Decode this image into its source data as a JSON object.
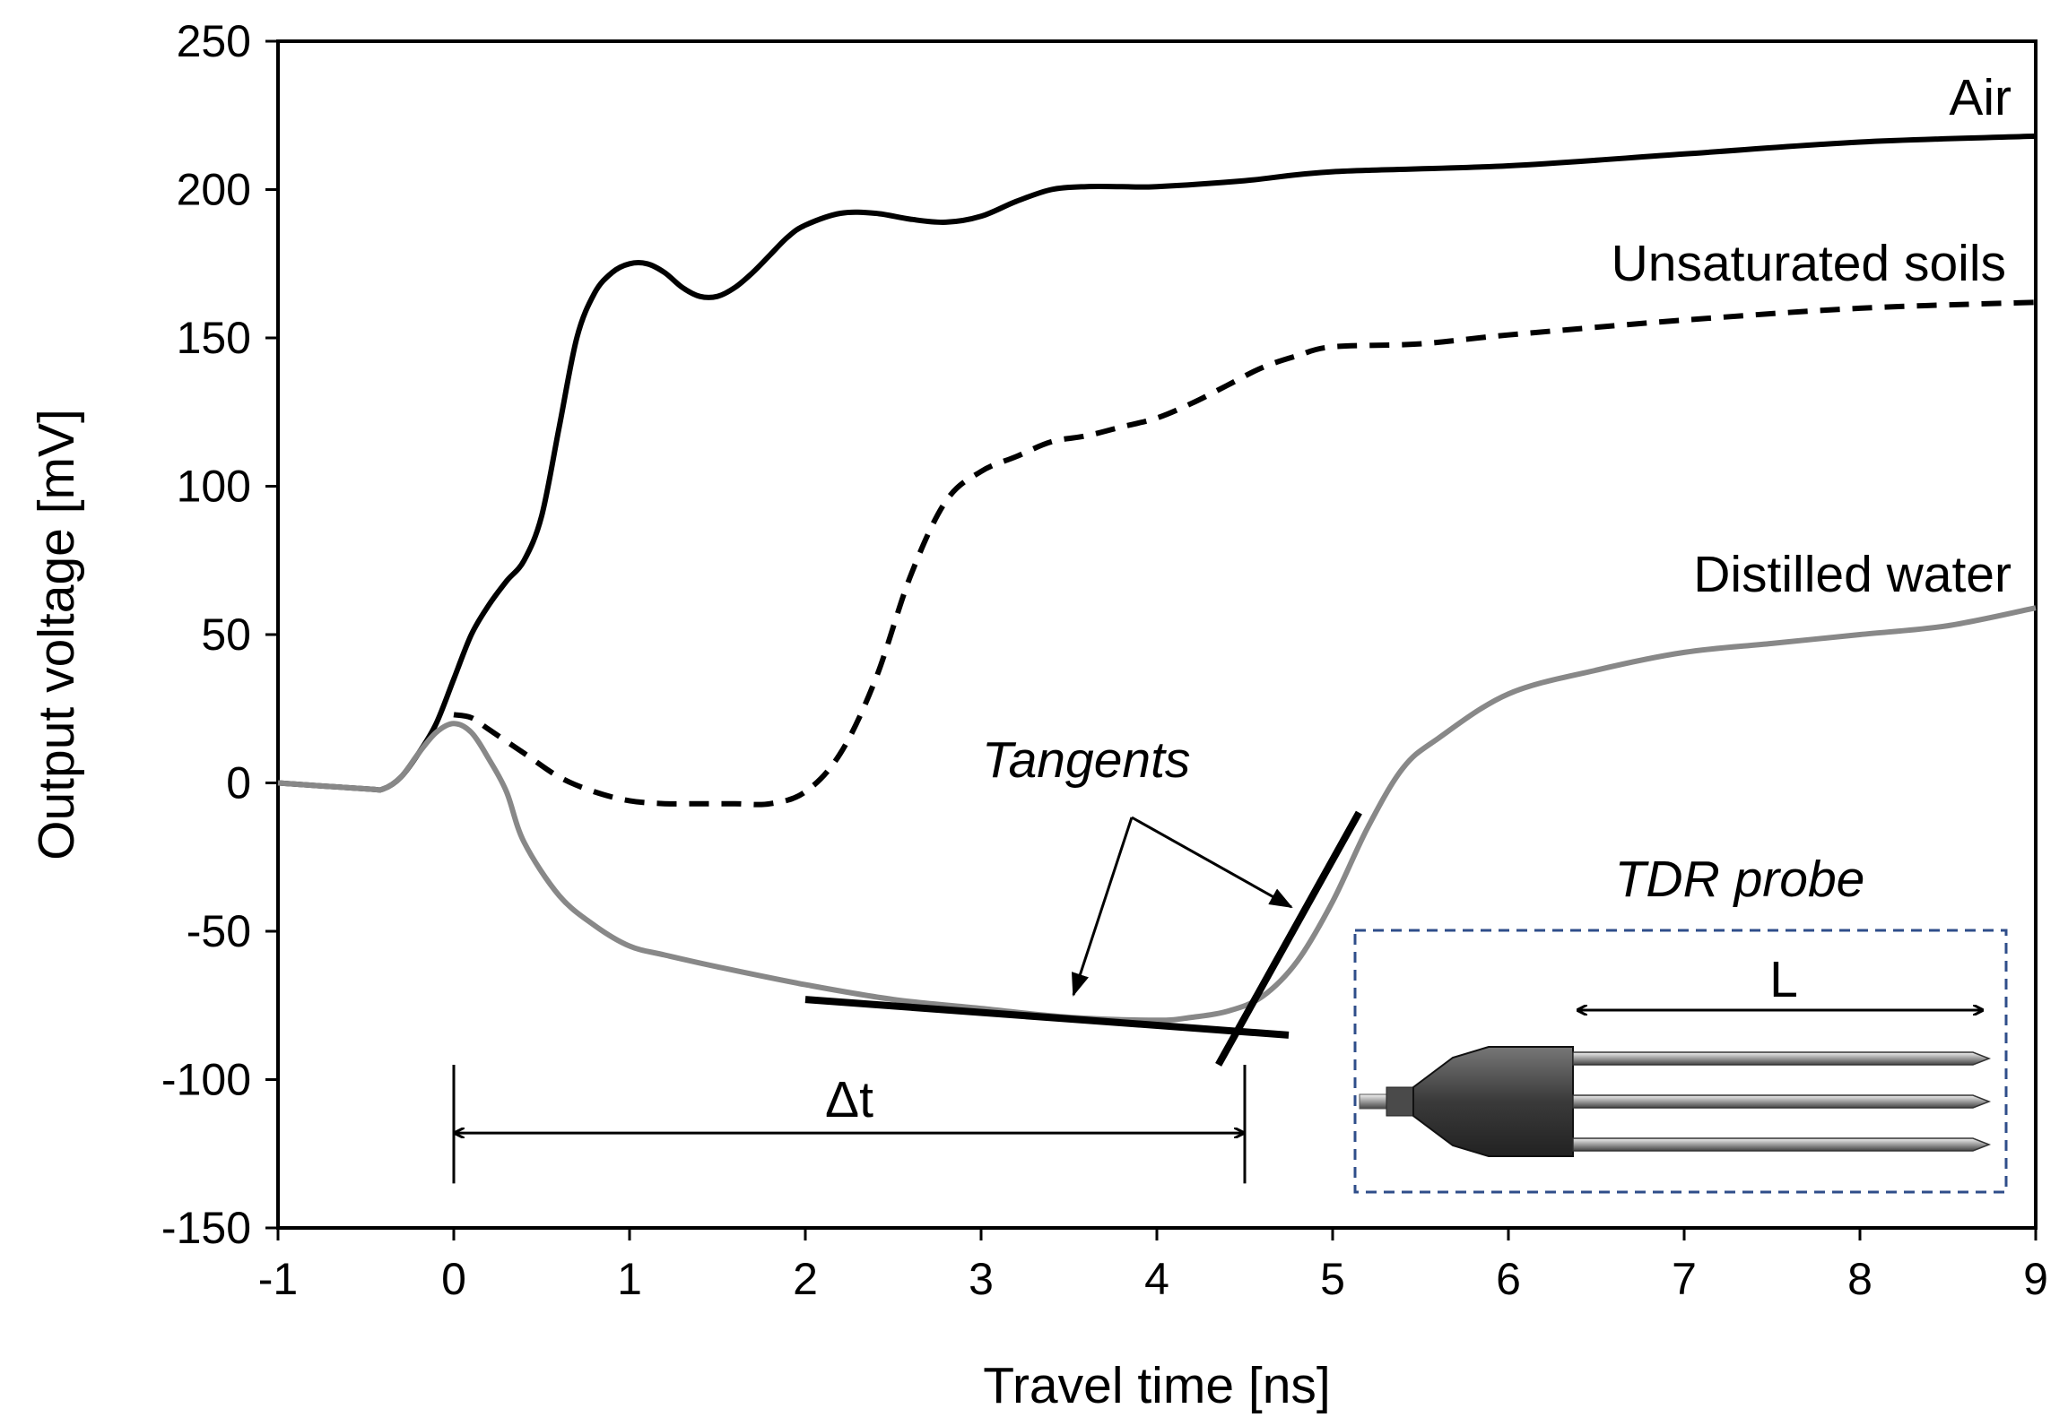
{
  "chart_data": {
    "type": "line",
    "xlabel": "Travel time [ns]",
    "ylabel": "Output voltage [mV]",
    "xlim": [
      -1,
      9
    ],
    "ylim": [
      -150,
      250
    ],
    "xticks": [
      -1,
      0,
      1,
      2,
      3,
      4,
      5,
      6,
      7,
      8,
      9
    ],
    "yticks": [
      -150,
      -100,
      -50,
      0,
      50,
      100,
      150,
      200,
      250
    ],
    "grid": false,
    "series": [
      {
        "name": "Air",
        "style": "solid",
        "color": "#000000",
        "x": [
          -1,
          -0.5,
          -0.4,
          -0.3,
          -0.2,
          -0.1,
          0,
          0.1,
          0.2,
          0.3,
          0.4,
          0.5,
          0.6,
          0.7,
          0.8,
          0.9,
          1.0,
          1.1,
          1.2,
          1.3,
          1.4,
          1.5,
          1.6,
          1.7,
          1.8,
          1.9,
          2.0,
          2.2,
          2.4,
          2.6,
          2.8,
          3.0,
          3.2,
          3.4,
          3.6,
          3.8,
          4.0,
          4.5,
          5.0,
          6.0,
          7.0,
          8.0,
          9.0
        ],
        "y": [
          0,
          -2,
          -2,
          2,
          10,
          20,
          35,
          50,
          60,
          68,
          75,
          90,
          120,
          150,
          165,
          172,
          175,
          175,
          172,
          167,
          164,
          164,
          167,
          172,
          178,
          184,
          188,
          192,
          192,
          190,
          189,
          191,
          196,
          200,
          201,
          201,
          201,
          203,
          206,
          208,
          212,
          216,
          218
        ]
      },
      {
        "name": "Unsaturated soils",
        "style": "dashed",
        "color": "#000000",
        "x": [
          0.0,
          0.1,
          0.2,
          0.4,
          0.6,
          0.8,
          1.0,
          1.2,
          1.4,
          1.6,
          1.8,
          2.0,
          2.2,
          2.4,
          2.6,
          2.8,
          3.0,
          3.2,
          3.4,
          3.6,
          3.8,
          4.0,
          4.2,
          4.4,
          4.6,
          4.8,
          5.0,
          5.5,
          6.0,
          7.0,
          8.0,
          9.0
        ],
        "y": [
          23,
          22,
          18,
          10,
          2,
          -3,
          -6,
          -7,
          -7,
          -7,
          -7,
          -3,
          10,
          35,
          70,
          95,
          105,
          110,
          115,
          117,
          120,
          123,
          128,
          134,
          140,
          144,
          147,
          148,
          151,
          156,
          160,
          162
        ]
      },
      {
        "name": "Distilled water",
        "style": "solid",
        "color": "#888888",
        "x": [
          -1,
          -0.5,
          -0.4,
          -0.3,
          -0.2,
          -0.1,
          0,
          0.1,
          0.2,
          0.3,
          0.4,
          0.6,
          0.8,
          1.0,
          1.2,
          1.5,
          2.0,
          2.5,
          3.0,
          3.5,
          4.0,
          4.2,
          4.4,
          4.6,
          4.8,
          5.0,
          5.2,
          5.4,
          5.6,
          6.0,
          6.5,
          7.0,
          7.5,
          8.0,
          8.5,
          9.0
        ],
        "y": [
          0,
          -2,
          -2,
          2,
          10,
          17,
          20,
          17,
          8,
          -3,
          -20,
          -38,
          -48,
          -55,
          -58,
          -62,
          -68,
          -73,
          -76,
          -79,
          -80,
          -79,
          -77,
          -72,
          -60,
          -40,
          -15,
          5,
          15,
          30,
          38,
          44,
          47,
          50,
          53,
          59
        ]
      }
    ],
    "labels": {
      "air": "Air",
      "unsaturated": "Unsaturated soils",
      "water": "Distilled water",
      "tangents": "Tangents",
      "delta_t": "Δt",
      "probe_title": "TDR probe",
      "probe_length": "L"
    },
    "tangents": [
      {
        "x": [
          2.0,
          4.75
        ],
        "y": [
          -73,
          -85
        ]
      },
      {
        "x": [
          4.35,
          5.15
        ],
        "y": [
          -95,
          -10
        ]
      }
    ],
    "delta_t_marker": {
      "start": 0,
      "end": 4.5,
      "y": -118
    }
  }
}
